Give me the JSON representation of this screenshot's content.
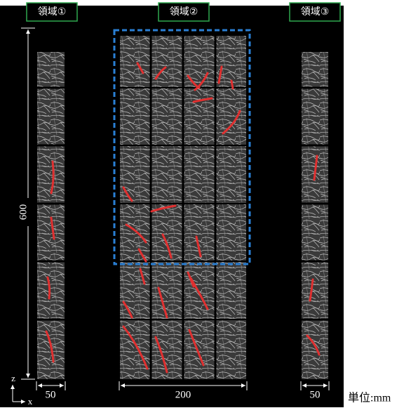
{
  "regions": [
    "領域①",
    "領域②",
    "領域③"
  ],
  "dimensions": {
    "height": 600,
    "left_width": 50,
    "middle_width": 200,
    "right_width": 50
  },
  "unit": "単位:mm",
  "axes": {
    "z": "z",
    "x": "x"
  }
}
